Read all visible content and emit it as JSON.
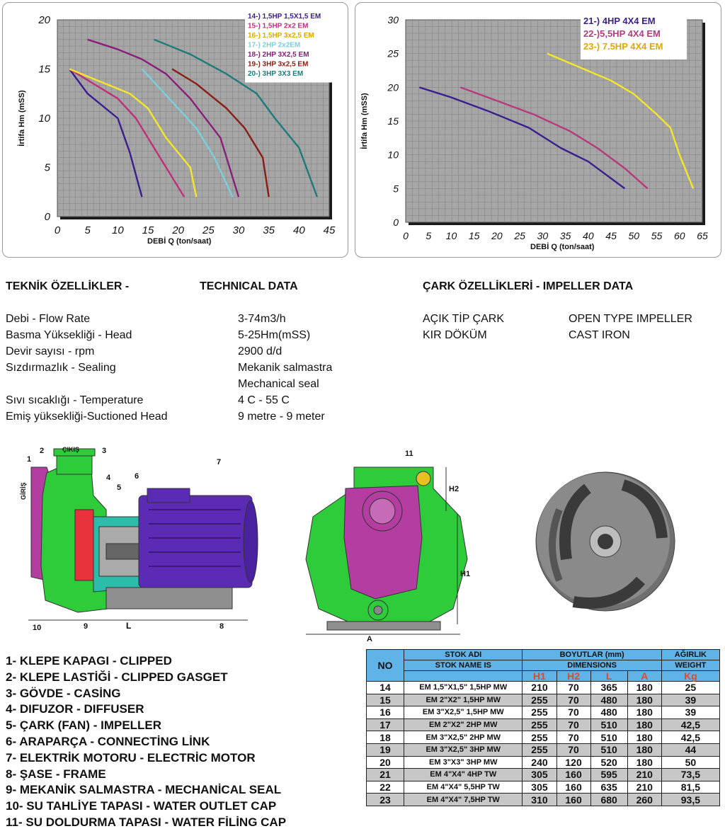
{
  "chart_data": [
    {
      "type": "line",
      "ylabel": "İrtifa    Hm (mSS)",
      "xlabel": "DEBİ    Q (ton/saat)",
      "xlim": [
        0,
        45
      ],
      "ylim": [
        0,
        20
      ],
      "x_ticks": [
        "0",
        "5",
        "10",
        "15",
        "20",
        "25",
        "30",
        "35",
        "40",
        "45"
      ],
      "y_ticks": [
        "0",
        "5",
        "10",
        "15",
        "20"
      ],
      "legend_position": "top-right",
      "series": [
        {
          "name": "14-) 1,5HP 1,5X1,5 EM",
          "color": "#3b1d8f",
          "x": [
            2,
            5,
            7,
            10,
            12,
            14
          ],
          "y": [
            15,
            12.5,
            11.5,
            10,
            6.5,
            2
          ]
        },
        {
          "name": "15-) 1,5HP 2x2 EM",
          "color": "#c0307a",
          "x": [
            2,
            6,
            10,
            13,
            16,
            21
          ],
          "y": [
            15,
            13.5,
            12,
            10,
            7,
            2
          ]
        },
        {
          "name": "16-) 1,5HP 3x2,5 EM",
          "color": "#f4e628",
          "x": [
            2,
            8,
            12,
            15,
            18,
            22,
            23
          ],
          "y": [
            15,
            13.5,
            12.5,
            11,
            8,
            5,
            2
          ]
        },
        {
          "name": "17-) 2HP 2x2EM",
          "color": "#7ad0da",
          "x": [
            14,
            17,
            20,
            23,
            26,
            29
          ],
          "y": [
            15,
            13,
            11,
            9,
            6,
            2
          ]
        },
        {
          "name": "18-) 2HP 3X2,5 EM",
          "color": "#8a1d7b",
          "x": [
            5,
            10,
            14,
            18,
            22,
            27,
            30
          ],
          "y": [
            18,
            17,
            16,
            14.5,
            12,
            8,
            2
          ]
        },
        {
          "name": "19-) 3HP 3x2,5 EM",
          "color": "#8a1d14",
          "x": [
            19,
            23,
            28,
            31,
            34,
            35
          ],
          "y": [
            15,
            13.5,
            11,
            9,
            6,
            2
          ]
        },
        {
          "name": "20-) 3HP 3X3 EM",
          "color": "#1f7b7b",
          "x": [
            16,
            22,
            28,
            33,
            36,
            40,
            43
          ],
          "y": [
            18,
            16.5,
            14.5,
            12.5,
            10,
            7,
            2
          ]
        }
      ]
    },
    {
      "type": "line",
      "ylabel": "İrtifa    Hm (mSS)",
      "xlabel": "DEBİ    Q (ton/saat)",
      "xlim": [
        0,
        65
      ],
      "ylim": [
        0,
        30
      ],
      "x_ticks": [
        "0",
        "5",
        "10",
        "15",
        "20",
        "25",
        "30",
        "35",
        "40",
        "45",
        "50",
        "55",
        "60",
        "65"
      ],
      "y_ticks": [
        "0",
        "5",
        "10",
        "15",
        "20",
        "25",
        "30"
      ],
      "legend_position": "top-right",
      "series": [
        {
          "name": "21-) 4HP 4X4 EM",
          "color": "#3b1d8f",
          "x": [
            3,
            10,
            18,
            27,
            34,
            40,
            48
          ],
          "y": [
            20,
            18.5,
            16.5,
            14,
            11,
            9,
            5
          ]
        },
        {
          "name": "22-)5,5HP 4X4 EM",
          "color": "#b83a7c",
          "x": [
            12,
            20,
            28,
            36,
            42,
            48,
            53
          ],
          "y": [
            20,
            18,
            16,
            13.5,
            11,
            8,
            5
          ]
        },
        {
          "name": "23-) 7.5HP 4X4 EM",
          "color": "#f4e628",
          "x": [
            31,
            38,
            45,
            50,
            55,
            58,
            60,
            63
          ],
          "y": [
            25,
            23,
            21,
            19,
            16,
            14,
            10,
            5
          ]
        }
      ]
    }
  ],
  "tech": {
    "heading_tr": "TEKNİK ÖZELLİKLER    -",
    "heading_en": "TECHNICAL DATA",
    "rows": [
      {
        "label": "Debi - Flow Rate",
        "value": "3-74m3/h"
      },
      {
        "label": "Basma Yüksekliği - Head",
        "value": "5-25Hm(mSS)"
      },
      {
        "label": "Devir sayısı - rpm",
        "value": "2900 d/d"
      },
      {
        "label": "Sızdırmazlık - Sealing",
        "value": "Mekanik salmastra"
      },
      {
        "label": "",
        "value": "Mechanical seal"
      },
      {
        "label": "Sıvı sıcaklığı - Temperature",
        "value": "4 C - 55 C"
      },
      {
        "label": "Emiş yüksekliği-Suctioned Head",
        "value": "9 metre - 9 meter"
      }
    ]
  },
  "impeller": {
    "heading": "ÇARK ÖZELLİKLERİ   -  IMPELLER DATA",
    "type_tr": "AÇIK TİP ÇARK",
    "type_en": "OPEN TYPE IMPELLER",
    "material_tr": "KIR DÖKÜM",
    "material_en": "CAST IRON"
  },
  "drawing": {
    "side_labels": [
      "1",
      "2",
      "3",
      "4",
      "5",
      "6",
      "7",
      "8",
      "9",
      "10"
    ],
    "inlet": "GİRİŞ",
    "outlet": "ÇIKIŞ",
    "dim_l": "L",
    "front_labels": [
      "11"
    ],
    "dim_h1": "H1",
    "dim_h2": "H2",
    "dim_a": "A"
  },
  "parts": [
    "1- KLEPE KAPAGI - CLIPPED",
    "2- KLEPE LASTİĞİ - CLIPPED GASGET",
    "3- GÖVDE -  CASİNG",
    "4- DIFUZOR - DIFFUSER",
    "5- ÇARK (FAN) - IMPELLER",
    "6- ARAPARÇA - CONNECTİNG LİNK",
    "7- ELEKTRİK MOTORU - ELECTRİC MOTOR",
    "8- ŞASE - FRAME",
    "9- MEKANİK SALMASTRA - MECHANİCAL SEAL",
    "10- SU TAHLİYE TAPASI - WATER OUTLET CAP",
    "11- SU DOLDURMA TAPASI - WATER FİLİNG CAP"
  ],
  "table": {
    "no": "NO",
    "stock_tr": "STOK ADI",
    "stock_en": "STOK NAME IS",
    "dims_tr": "BOYUTLAR (mm)",
    "dims_en": "DIMENSIONS",
    "weight_tr": "AĞIRLIK",
    "weight_en": "WEIGHT",
    "h1": "H1",
    "h2": "H2",
    "l": "L",
    "a": "A",
    "kg": "Kg",
    "rows": [
      [
        "14",
        "EM 1,5\"X1,5\" 1,5HP MW",
        "210",
        "70",
        "365",
        "180",
        "25"
      ],
      [
        "15",
        "EM  2\"X2\"  1,5HP MW",
        "255",
        "70",
        "480",
        "180",
        "39"
      ],
      [
        "16",
        "EM 3\"X2,5\" 1,5HP MW",
        "255",
        "70",
        "480",
        "180",
        "39"
      ],
      [
        "17",
        "EM 2\"X2\" 2HP MW",
        "255",
        "70",
        "510",
        "180",
        "42,5"
      ],
      [
        "18",
        "EM 3\"X2,5\" 2HP MW",
        "255",
        "70",
        "510",
        "180",
        "42,5"
      ],
      [
        "19",
        "EM 3\"X2,5\" 3HP MW",
        "255",
        "70",
        "510",
        "180",
        "44"
      ],
      [
        "20",
        "EM 3\"X3\" 3HP MW",
        "240",
        "120",
        "520",
        "180",
        "50"
      ],
      [
        "21",
        "EM  4\"X4\"  4HP TW",
        "305",
        "160",
        "595",
        "210",
        "73,5"
      ],
      [
        "22",
        "EM 4\"X4\"  5,5HP TW",
        "305",
        "160",
        "635",
        "210",
        "81,5"
      ],
      [
        "23",
        "EM  4\"X4\"  7,5HP TW",
        "310",
        "160",
        "680",
        "260",
        "93,5"
      ]
    ]
  }
}
